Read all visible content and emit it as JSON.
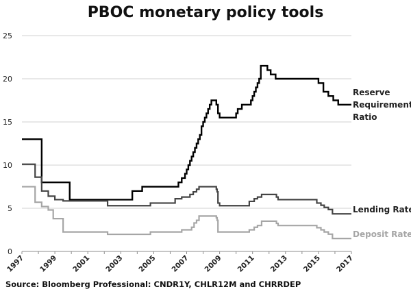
{
  "chart_data": {
    "type": "line",
    "title": "PBOC monetary policy tools",
    "source": "Source: Bloomberg Professional: CNDR1Y, CHLR12M and CHRRDEP",
    "xlabel": "",
    "ylabel": "",
    "xlim": [
      1997,
      2017
    ],
    "ylim": [
      0,
      25
    ],
    "yticks": [
      0,
      5,
      10,
      15,
      20,
      25
    ],
    "xticks": [
      1997,
      1999,
      2001,
      2003,
      2005,
      2007,
      2009,
      2011,
      2013,
      2015,
      2017
    ],
    "grid": "horizontal",
    "legend": "labels at right end of lines",
    "series": [
      {
        "name": "Reserve Requirement Ratio",
        "label_lines": [
          "Reserve",
          "Requirement",
          "Ratio"
        ],
        "color": "#000000",
        "step": true,
        "x": [
          1997.0,
          1998.2,
          1999.9,
          2003.7,
          2004.3,
          2006.5,
          2006.7,
          2006.9,
          2007.0,
          2007.1,
          2007.2,
          2007.3,
          2007.4,
          2007.5,
          2007.6,
          2007.7,
          2007.8,
          2007.9,
          2008.0,
          2008.1,
          2008.2,
          2008.3,
          2008.4,
          2008.5,
          2008.8,
          2008.9,
          2009.0,
          2010.0,
          2010.1,
          2010.35,
          2010.9,
          2011.0,
          2011.1,
          2011.2,
          2011.3,
          2011.4,
          2011.5,
          2011.9,
          2012.1,
          2012.4,
          2015.0,
          2015.3,
          2015.6,
          2015.9,
          2016.2,
          2017.0
        ],
        "y": [
          13.0,
          8.0,
          6.0,
          7.0,
          7.5,
          8.0,
          8.5,
          9.0,
          9.5,
          10.0,
          10.5,
          11.0,
          11.5,
          12.0,
          12.5,
          13.0,
          13.5,
          14.5,
          15.0,
          15.5,
          16.0,
          16.5,
          17.0,
          17.5,
          17.0,
          16.0,
          15.5,
          16.0,
          16.5,
          17.0,
          17.5,
          18.0,
          18.5,
          19.0,
          19.5,
          20.0,
          21.5,
          21.0,
          20.5,
          20.0,
          19.5,
          18.5,
          18.0,
          17.5,
          17.0,
          17.0
        ]
      },
      {
        "name": "Lending Rate",
        "label_lines": [
          "Lending Rate"
        ],
        "color": "#444444",
        "step": true,
        "x": [
          1997.0,
          1997.8,
          1998.2,
          1998.6,
          1999.0,
          1999.5,
          2002.2,
          2004.8,
          2006.3,
          2006.7,
          2007.2,
          2007.4,
          2007.6,
          2007.75,
          2007.9,
          2008.8,
          2008.85,
          2008.9,
          2009.0,
          2010.8,
          2011.1,
          2011.3,
          2011.55,
          2012.45,
          2012.55,
          2014.9,
          2015.15,
          2015.35,
          2015.6,
          2015.85,
          2017.0
        ],
        "y": [
          10.1,
          8.6,
          7.0,
          6.4,
          6.0,
          5.85,
          5.3,
          5.6,
          6.1,
          6.3,
          6.6,
          6.9,
          7.2,
          7.5,
          7.5,
          7.2,
          6.9,
          5.6,
          5.3,
          5.8,
          6.1,
          6.3,
          6.6,
          6.3,
          6.0,
          5.6,
          5.35,
          5.1,
          4.85,
          4.35,
          4.35
        ]
      },
      {
        "name": "Deposit Rate",
        "label_lines": [
          "Deposit Rate"
        ],
        "color": "#a6a6a6",
        "step": true,
        "x": [
          1997.0,
          1997.8,
          1998.2,
          1998.6,
          1998.9,
          1999.5,
          2002.2,
          2004.8,
          2006.7,
          2007.3,
          2007.45,
          2007.6,
          2007.75,
          2008.8,
          2008.85,
          2008.9,
          2010.8,
          2011.1,
          2011.3,
          2011.55,
          2012.45,
          2012.55,
          2014.9,
          2015.15,
          2015.35,
          2015.6,
          2015.85,
          2017.0
        ],
        "y": [
          7.5,
          5.7,
          5.2,
          4.8,
          3.8,
          2.25,
          1.98,
          2.25,
          2.5,
          2.8,
          3.3,
          3.6,
          4.1,
          3.9,
          3.6,
          2.25,
          2.5,
          2.8,
          3.0,
          3.5,
          3.25,
          3.0,
          2.75,
          2.5,
          2.25,
          2.0,
          1.5,
          1.5
        ]
      }
    ]
  }
}
